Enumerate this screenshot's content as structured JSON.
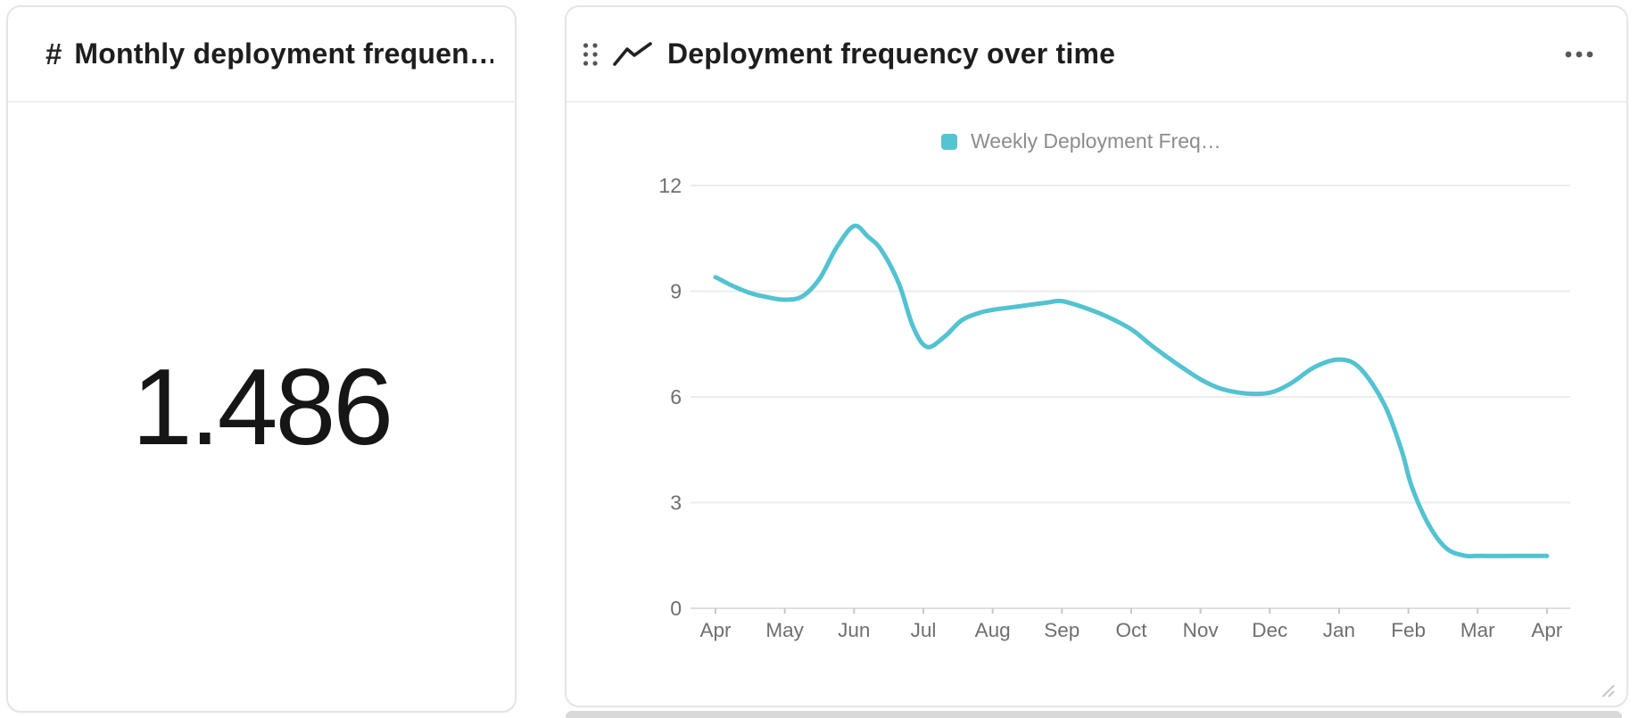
{
  "stat_card": {
    "icon": "#",
    "title": "Monthly deployment frequen…",
    "value": "1.486"
  },
  "chart_card": {
    "title": "Deployment frequency over time",
    "legend_label": "Weekly Deployment Freq…",
    "menu_icon": "ellipsis",
    "drag_handle_icon": "six-dot-grip",
    "title_icon": "trend-line"
  },
  "chart_data": {
    "type": "line",
    "title": "Deployment frequency over time",
    "categories": [
      "Apr",
      "May",
      "Jun",
      "Jul",
      "Aug",
      "Sep",
      "Oct",
      "Nov",
      "Dec",
      "Jan",
      "Feb",
      "Mar",
      "Apr"
    ],
    "monthly_values": [
      9.4,
      8.8,
      10.85,
      7.4,
      8.5,
      8.7,
      7.9,
      6.5,
      6.1,
      7.05,
      3.45,
      1.49,
      1.49
    ],
    "y_ticks": [
      0,
      3,
      6,
      9,
      12
    ],
    "ylim": [
      0,
      12
    ],
    "xlabel": "",
    "ylabel": "",
    "grid": true,
    "legend_position": "top",
    "series": [
      {
        "name": "Weekly Deployment Freq…",
        "color": "#53c2d1",
        "points": [
          [
            0.0,
            9.4
          ],
          [
            0.25,
            9.15
          ],
          [
            0.5,
            8.95
          ],
          [
            0.75,
            8.83
          ],
          [
            1.0,
            8.76
          ],
          [
            1.25,
            8.85
          ],
          [
            1.5,
            9.35
          ],
          [
            1.75,
            10.25
          ],
          [
            2.0,
            10.85
          ],
          [
            2.2,
            10.55
          ],
          [
            2.4,
            10.15
          ],
          [
            2.65,
            9.2
          ],
          [
            2.85,
            8.0
          ],
          [
            3.05,
            7.42
          ],
          [
            3.3,
            7.7
          ],
          [
            3.55,
            8.17
          ],
          [
            3.8,
            8.38
          ],
          [
            4.0,
            8.47
          ],
          [
            4.3,
            8.55
          ],
          [
            4.6,
            8.63
          ],
          [
            4.8,
            8.68
          ],
          [
            5.0,
            8.72
          ],
          [
            5.3,
            8.55
          ],
          [
            5.65,
            8.28
          ],
          [
            6.0,
            7.92
          ],
          [
            6.3,
            7.45
          ],
          [
            6.65,
            6.95
          ],
          [
            7.0,
            6.5
          ],
          [
            7.3,
            6.23
          ],
          [
            7.65,
            6.1
          ],
          [
            8.0,
            6.12
          ],
          [
            8.3,
            6.38
          ],
          [
            8.65,
            6.85
          ],
          [
            9.0,
            7.06
          ],
          [
            9.3,
            6.82
          ],
          [
            9.65,
            5.8
          ],
          [
            9.9,
            4.5
          ],
          [
            10.05,
            3.45
          ],
          [
            10.3,
            2.35
          ],
          [
            10.55,
            1.7
          ],
          [
            10.8,
            1.5
          ],
          [
            11.0,
            1.486
          ],
          [
            11.5,
            1.486
          ],
          [
            12.0,
            1.486
          ]
        ]
      }
    ]
  },
  "colors": {
    "accent": "#53c2d1",
    "legend_swatch": "#56c3d2",
    "gridline": "#ececec",
    "axis_line": "#dedede",
    "tick_mark": "#c8c8c8",
    "axis_label": "#6f6f6f",
    "legend_text": "#8c8c8c",
    "title_text": "#1d1d1d",
    "card_border": "#e5e5e5",
    "icon_gray": "#565656"
  }
}
